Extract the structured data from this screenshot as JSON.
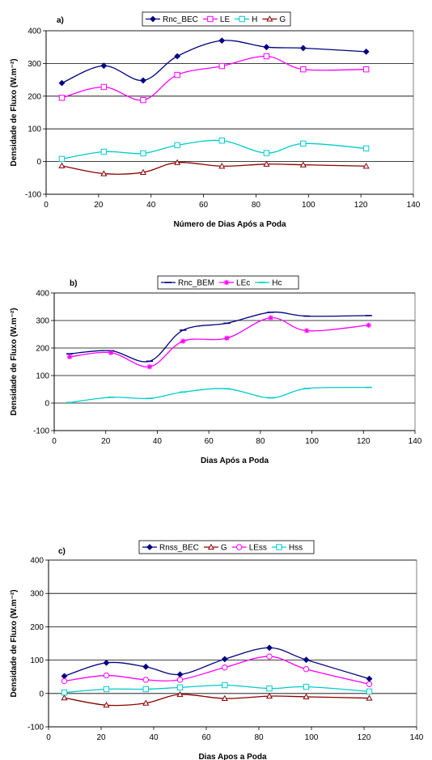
{
  "figure": {
    "charts": [
      {
        "tag": "a)",
        "xlabel": "Número de Dias Após a Poda",
        "ylabel": "Densidade de Fluxo (W.m⁻²)",
        "colors": {
          "Rnc_BEC": "#000080",
          "LE": "#ff00ff",
          "H": "#00cccc",
          "G": "#8b0000"
        }
      },
      {
        "tag": "b)",
        "xlabel": "Dias Após a Poda",
        "ylabel": "Densidade de Fluxo (W.m⁻²)",
        "colors": {
          "Rnc_BEM": "#000080",
          "LEc": "#ff00ff",
          "Hc": "#00cccc"
        }
      },
      {
        "tag": "c)",
        "xlabel": "Dias Apos a Poda",
        "ylabel": "Densidade de Fluxo (W.m⁻²)",
        "colors": {
          "Rnss_BEC": "#000080",
          "G": "#8b0000",
          "LEss": "#ff00ff",
          "Hss": "#00cccc"
        }
      }
    ]
  },
  "chart_data": [
    {
      "type": "line",
      "title": "a)",
      "xlabel": "Número de Dias Após a Poda",
      "ylabel": "Densidade de Fluxo (W.m⁻²)",
      "xlim": [
        0,
        140
      ],
      "ylim": [
        -100,
        400
      ],
      "xticks": [
        "0",
        "20",
        "40",
        "60",
        "80",
        "100",
        "120",
        "140"
      ],
      "yticks": [
        "-100",
        "0",
        "100",
        "200",
        "300",
        "400"
      ],
      "grid": "horizontal",
      "legend_position": "top",
      "x": [
        6,
        22,
        37,
        50,
        67,
        84,
        98,
        122
      ],
      "series": [
        {
          "name": "Rnc_BEC",
          "marker": "diamond",
          "values": [
            240,
            293,
            248,
            322,
            370,
            350,
            347,
            336
          ]
        },
        {
          "name": "LE",
          "marker": "square-open",
          "values": [
            195,
            228,
            188,
            265,
            292,
            322,
            282,
            282
          ]
        },
        {
          "name": "H",
          "marker": "square-open",
          "values": [
            8,
            30,
            25,
            50,
            64,
            26,
            55,
            40
          ]
        },
        {
          "name": "G",
          "marker": "triangle-open",
          "values": [
            -13,
            -37,
            -33,
            -3,
            -14,
            -8,
            -10,
            -14
          ]
        }
      ]
    },
    {
      "type": "line",
      "title": "b)",
      "xlabel": "Dias Após a Poda",
      "ylabel": "Densidade de Fluxo (W.m⁻²)",
      "xlim": [
        0,
        140
      ],
      "ylim": [
        -100,
        400
      ],
      "xticks": [
        "0",
        "20",
        "40",
        "60",
        "80",
        "100",
        "120",
        "140"
      ],
      "yticks": [
        "-100",
        "0",
        "100",
        "200",
        "300",
        "400"
      ],
      "grid": "horizontal",
      "legend_position": "top",
      "x": [
        6,
        22,
        37,
        50,
        67,
        84,
        98,
        122
      ],
      "series": [
        {
          "name": "Rnc_BEM",
          "marker": "dash",
          "values": [
            179,
            190,
            152,
            265,
            290,
            330,
            316,
            318
          ]
        },
        {
          "name": "LEc",
          "marker": "star",
          "values": [
            168,
            183,
            132,
            225,
            236,
            310,
            263,
            283
          ]
        },
        {
          "name": "Hc",
          "marker": "dash",
          "values": [
            2,
            21,
            17,
            40,
            52,
            19,
            53,
            57
          ]
        }
      ]
    },
    {
      "type": "line",
      "title": "c)",
      "xlabel": "Dias Apos a Poda",
      "ylabel": "Densidade de Fluxo (W.m⁻²)",
      "xlim": [
        0,
        140
      ],
      "ylim": [
        -100,
        400
      ],
      "xticks": [
        "0",
        "20",
        "40",
        "60",
        "80",
        "100",
        "120",
        "140"
      ],
      "yticks": [
        "-100",
        "0",
        "100",
        "200",
        "300",
        "400"
      ],
      "grid": "horizontal",
      "legend_position": "top",
      "x": [
        6,
        22,
        37,
        50,
        67,
        84,
        98,
        122
      ],
      "series": [
        {
          "name": "Rnss_BEC",
          "marker": "diamond",
          "values": [
            52,
            92,
            80,
            57,
            103,
            137,
            101,
            44
          ]
        },
        {
          "name": "G",
          "marker": "triangle-open",
          "values": [
            -13,
            -35,
            -29,
            -3,
            -15,
            -8,
            -10,
            -14
          ]
        },
        {
          "name": "LEss",
          "marker": "circle-open",
          "values": [
            37,
            54,
            41,
            41,
            78,
            111,
            73,
            28
          ]
        },
        {
          "name": "Hss",
          "marker": "square-open",
          "values": [
            3,
            13,
            13,
            18,
            25,
            15,
            20,
            6
          ]
        }
      ]
    }
  ]
}
